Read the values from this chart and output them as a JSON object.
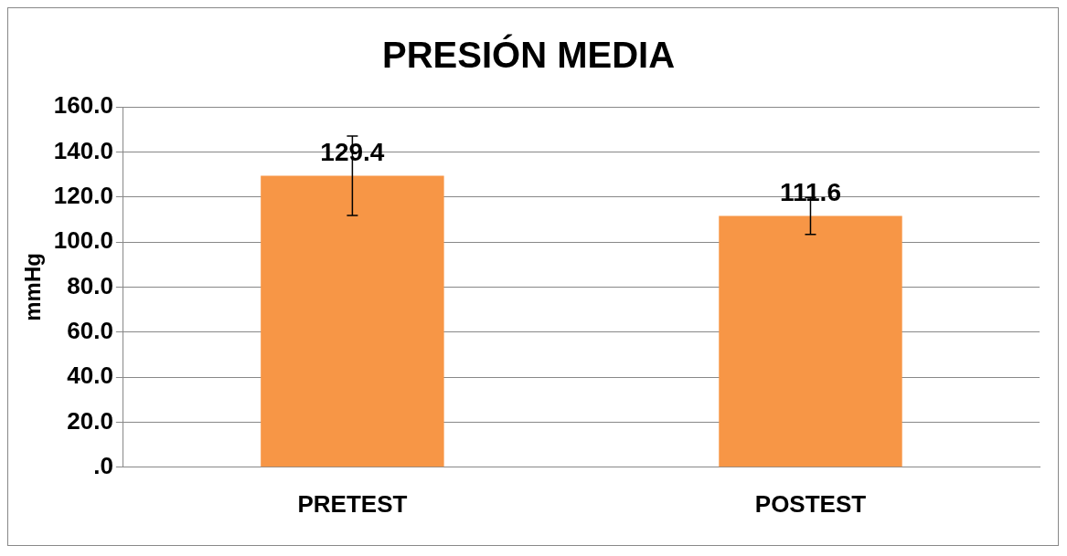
{
  "chart_data": {
    "type": "bar",
    "title": "PRESIÓN MEDIA",
    "ylabel": "mmHg",
    "categories": [
      "PRETEST",
      "POSTEST"
    ],
    "values": [
      129.4,
      111.6
    ],
    "errors": [
      17.6,
      8.2
    ],
    "color": "#f79646",
    "ylim": [
      0,
      160
    ],
    "yticks": [
      {
        "value": 0,
        "label": ".0"
      },
      {
        "value": 20,
        "label": "20.0"
      },
      {
        "value": 40,
        "label": "40.0"
      },
      {
        "value": 60,
        "label": "60.0"
      },
      {
        "value": 80,
        "label": "80.0"
      },
      {
        "value": 100,
        "label": "100.0"
      },
      {
        "value": 120,
        "label": "120.0"
      },
      {
        "value": 140,
        "label": "140.0"
      },
      {
        "value": 160,
        "label": "160.0"
      }
    ],
    "grid": "y",
    "legend": false,
    "data_labels": true
  }
}
